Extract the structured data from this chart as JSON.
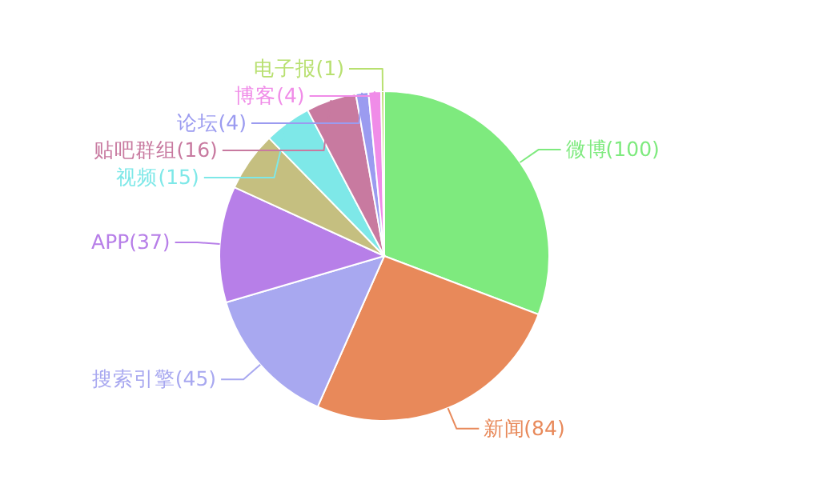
{
  "chart_data": {
    "type": "pie",
    "categories": [
      "微博",
      "新闻",
      "搜索引擎",
      "APP",
      null,
      "视频",
      "贴吧群组",
      "论坛",
      "博客",
      "电子报"
    ],
    "values": [
      100,
      84,
      45,
      37,
      19,
      15,
      16,
      4,
      4,
      1
    ],
    "colors": [
      "#7eea7e",
      "#e8895a",
      "#a8a8f0",
      "#b77fe8",
      "#c5bf80",
      "#7ee8e8",
      "#c87aa0",
      "#9b9bf0",
      "#f08ce8",
      "#b8e070"
    ],
    "value_labels": [
      "(100)",
      "(84)",
      "(45)",
      "(37)",
      null,
      "(15)",
      "(16)",
      "(4)",
      "(4)",
      "(1)"
    ]
  }
}
